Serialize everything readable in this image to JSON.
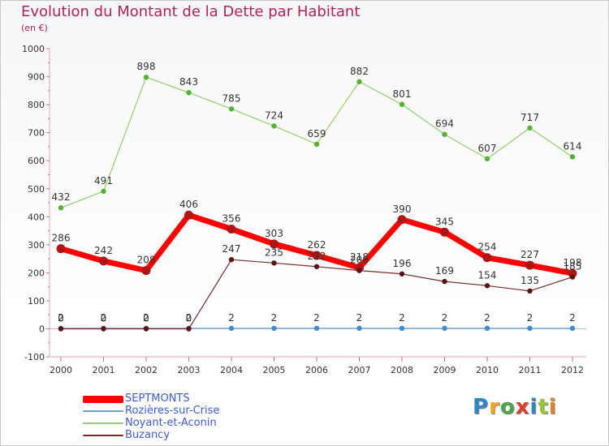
{
  "title": "Evolution du Montant de la Dette par Habitant",
  "subtitle": "(en €)",
  "logo": {
    "text": "Proxiti",
    "letter_colors": [
      "#2e86c9",
      "#f2a81d",
      "#4aa64a",
      "#e53b2c",
      "#2e86c9",
      "#9ac23c",
      "#e57f28"
    ]
  },
  "chart_data": {
    "type": "line",
    "x": [
      "2000",
      "2001",
      "2002",
      "2003",
      "2004",
      "2005",
      "2006",
      "2007",
      "2008",
      "2009",
      "2010",
      "2011",
      "2012"
    ],
    "ylim": [
      -100,
      1000
    ],
    "yticks": [
      -100,
      0,
      100,
      200,
      300,
      400,
      500,
      600,
      700,
      800,
      900,
      1000
    ],
    "grid": false,
    "legend_position": "bottom-left",
    "series": [
      {
        "name": "SEPTMONTS",
        "color": "#ff0000",
        "values": [
          286,
          242,
          208,
          406,
          356,
          303,
          262,
          218,
          390,
          345,
          254,
          227,
          198
        ]
      },
      {
        "name": "Rozières-sur-Crise",
        "color": "#6fa1c8",
        "values": [
          2,
          2,
          2,
          2,
          2,
          2,
          2,
          2,
          2,
          2,
          2,
          2,
          2
        ]
      },
      {
        "name": "Noyant-et-Aconin",
        "color": "#8fd16a",
        "values": [
          432,
          491,
          898,
          843,
          785,
          724,
          659,
          882,
          801,
          694,
          607,
          717,
          614
        ]
      },
      {
        "name": "Buzancy",
        "color": "#7a2b2b",
        "values": [
          0,
          0,
          0,
          0,
          247,
          235,
          222,
          208,
          196,
          169,
          154,
          135,
          185
        ]
      }
    ]
  }
}
